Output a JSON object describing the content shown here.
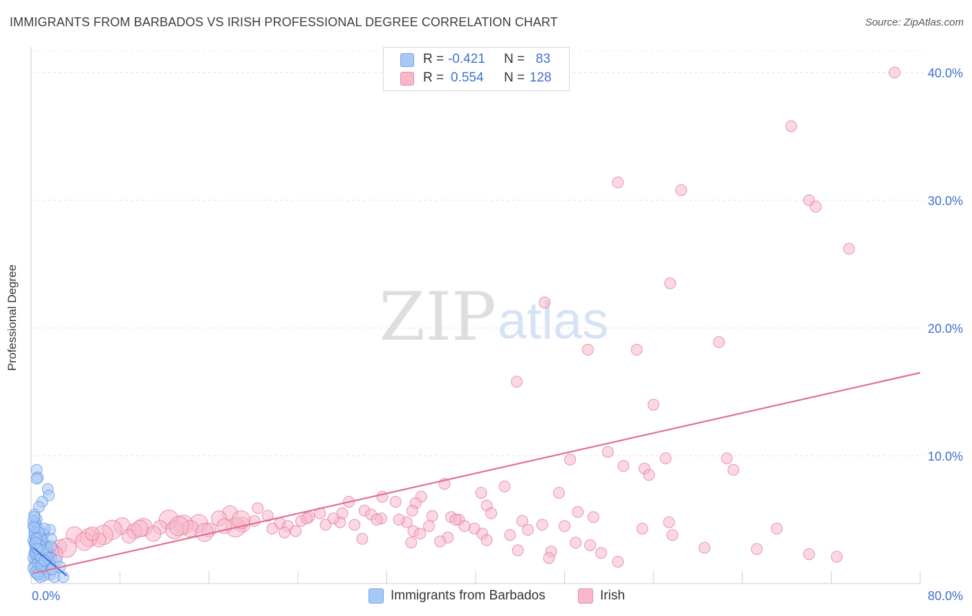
{
  "title": "IMMIGRANTS FROM BARBADOS VS IRISH PROFESSIONAL DEGREE CORRELATION CHART",
  "source": "Source: ZipAtlas.com",
  "watermark": {
    "zip": "ZIP",
    "atlas": "atlas"
  },
  "legend_stats": [
    {
      "r_label": "R =",
      "r_value": "-0.421",
      "n_label": "N =",
      "n_value": "83",
      "color": "#a8c8f5"
    },
    {
      "r_label": "R =",
      "r_value": "0.554",
      "n_label": "N =",
      "n_value": "128",
      "color": "#f7b8cc"
    }
  ],
  "bottom_legend": [
    {
      "label": "Immigrants from Barbados",
      "color": "#a8c8f5"
    },
    {
      "label": "Irish",
      "color": "#f7b8cc"
    }
  ],
  "chart_data": {
    "type": "scatter",
    "title": "IMMIGRANTS FROM BARBADOS VS IRISH PROFESSIONAL DEGREE CORRELATION CHART",
    "xlabel": "",
    "ylabel": "Professional Degree",
    "xlim": [
      0,
      80
    ],
    "ylim": [
      0,
      42
    ],
    "x_tick_labels": {
      "min": "0.0%",
      "max": "80.0%"
    },
    "y_ticks": [
      10,
      20,
      30,
      40
    ],
    "y_tick_labels": [
      "10.0%",
      "20.0%",
      "30.0%",
      "40.0%"
    ],
    "grid": true,
    "series": [
      {
        "name": "Immigrants from Barbados",
        "color": "#5b8fe0",
        "fill": "#a8c8f5",
        "r": -0.421,
        "n": 83,
        "trend": {
          "x": [
            0.2,
            3.2
          ],
          "y": [
            2.8,
            0.6
          ]
        },
        "points": [
          [
            0.5,
            8.9
          ],
          [
            0.6,
            8.3
          ],
          [
            0.5,
            8.2
          ],
          [
            1.5,
            7.4
          ],
          [
            1.6,
            6.9
          ],
          [
            1.0,
            6.4
          ],
          [
            0.7,
            6.0
          ],
          [
            0.3,
            5.4
          ],
          [
            0.5,
            5.0
          ],
          [
            0.4,
            4.7
          ],
          [
            0.2,
            4.5
          ],
          [
            0.6,
            4.3
          ],
          [
            1.7,
            4.2
          ],
          [
            0.3,
            4.0
          ],
          [
            1.1,
            3.9
          ],
          [
            0.8,
            3.7
          ],
          [
            0.4,
            3.6
          ],
          [
            1.8,
            3.5
          ],
          [
            0.2,
            3.4
          ],
          [
            0.5,
            3.3
          ],
          [
            0.9,
            3.2
          ],
          [
            0.3,
            3.1
          ],
          [
            1.3,
            3.0
          ],
          [
            0.7,
            2.9
          ],
          [
            0.4,
            2.8
          ],
          [
            1.0,
            2.7
          ],
          [
            0.6,
            2.6
          ],
          [
            1.5,
            2.5
          ],
          [
            0.3,
            2.4
          ],
          [
            0.9,
            2.3
          ],
          [
            1.2,
            2.2
          ],
          [
            0.5,
            2.1
          ],
          [
            1.8,
            2.0
          ],
          [
            0.8,
            1.9
          ],
          [
            0.4,
            1.8
          ],
          [
            1.1,
            1.7
          ],
          [
            1.6,
            1.6
          ],
          [
            0.7,
            1.5
          ],
          [
            0.3,
            1.4
          ],
          [
            1.4,
            1.3
          ],
          [
            1.0,
            1.2
          ],
          [
            0.6,
            1.1
          ],
          [
            0.9,
            1.0
          ],
          [
            1.3,
            0.9
          ],
          [
            0.5,
            0.8
          ],
          [
            1.7,
            0.7
          ],
          [
            1.1,
            0.6
          ],
          [
            0.8,
            0.5
          ],
          [
            2.1,
            0.5
          ],
          [
            2.9,
            0.5
          ],
          [
            0.2,
            2.0
          ],
          [
            0.4,
            2.5
          ],
          [
            0.6,
            3.0
          ],
          [
            0.9,
            3.6
          ],
          [
            0.2,
            4.9
          ],
          [
            0.3,
            5.2
          ],
          [
            0.4,
            2.3
          ],
          [
            0.6,
            1.6
          ],
          [
            1.2,
            4.3
          ],
          [
            0.7,
            2.2
          ],
          [
            1.4,
            2.8
          ],
          [
            0.9,
            2.0
          ],
          [
            0.3,
            3.8
          ],
          [
            0.5,
            2.9
          ],
          [
            1.0,
            3.4
          ],
          [
            2.3,
            1.8
          ],
          [
            1.9,
            1.1
          ],
          [
            0.8,
            3.0
          ],
          [
            1.3,
            2.4
          ],
          [
            0.2,
            1.2
          ],
          [
            0.4,
            0.9
          ],
          [
            0.7,
            4.0
          ],
          [
            1.5,
            2.0
          ],
          [
            0.5,
            3.5
          ],
          [
            1.1,
            2.6
          ],
          [
            0.6,
            0.7
          ],
          [
            2.6,
            1.3
          ],
          [
            0.3,
            4.4
          ],
          [
            1.8,
            2.9
          ],
          [
            0.9,
            1.4
          ],
          [
            0.4,
            3.2
          ],
          [
            1.2,
            1.8
          ],
          [
            0.6,
            2.7
          ]
        ]
      },
      {
        "name": "Irish",
        "color": "#e0708f",
        "fill": "#f7b8cc",
        "r": 0.554,
        "n": 128,
        "trend": {
          "x": [
            0.2,
            80
          ],
          "y": [
            0.8,
            16.5
          ]
        },
        "points": [
          [
            77.7,
            40.0
          ],
          [
            68.4,
            35.8
          ],
          [
            52.8,
            31.4
          ],
          [
            58.5,
            30.8
          ],
          [
            70.0,
            30.0
          ],
          [
            70.6,
            29.5
          ],
          [
            73.6,
            26.2
          ],
          [
            57.5,
            23.5
          ],
          [
            46.2,
            22.0
          ],
          [
            50.1,
            18.3
          ],
          [
            54.5,
            18.3
          ],
          [
            61.9,
            18.9
          ],
          [
            43.7,
            15.8
          ],
          [
            56.0,
            14.0
          ],
          [
            51.9,
            10.3
          ],
          [
            48.5,
            9.7
          ],
          [
            57.1,
            9.8
          ],
          [
            62.6,
            9.8
          ],
          [
            53.3,
            9.2
          ],
          [
            55.2,
            9.0
          ],
          [
            63.2,
            8.9
          ],
          [
            55.6,
            8.5
          ],
          [
            37.2,
            7.8
          ],
          [
            42.6,
            7.6
          ],
          [
            40.5,
            7.1
          ],
          [
            47.5,
            7.1
          ],
          [
            35.1,
            6.8
          ],
          [
            31.6,
            6.8
          ],
          [
            28.6,
            6.4
          ],
          [
            32.8,
            6.4
          ],
          [
            34.6,
            6.3
          ],
          [
            41.0,
            6.1
          ],
          [
            20.4,
            5.9
          ],
          [
            17.9,
            5.5
          ],
          [
            30.0,
            5.7
          ],
          [
            34.3,
            5.7
          ],
          [
            26.0,
            5.5
          ],
          [
            49.2,
            5.6
          ],
          [
            41.4,
            5.5
          ],
          [
            21.3,
            5.3
          ],
          [
            30.6,
            5.4
          ],
          [
            25.0,
            5.2
          ],
          [
            36.1,
            5.3
          ],
          [
            16.9,
            5.1
          ],
          [
            31.5,
            5.1
          ],
          [
            37.8,
            5.2
          ],
          [
            38.5,
            5.0
          ],
          [
            12.4,
            5.0
          ],
          [
            20.1,
            4.9
          ],
          [
            24.3,
            4.9
          ],
          [
            27.8,
            4.8
          ],
          [
            33.8,
            4.8
          ],
          [
            44.2,
            4.9
          ],
          [
            50.6,
            5.2
          ],
          [
            15.1,
            4.7
          ],
          [
            22.4,
            4.7
          ],
          [
            8.2,
            4.5
          ],
          [
            13.7,
            4.6
          ],
          [
            19.0,
            4.6
          ],
          [
            23.1,
            4.5
          ],
          [
            26.5,
            4.6
          ],
          [
            29.1,
            4.6
          ],
          [
            35.8,
            4.5
          ],
          [
            46.0,
            4.6
          ],
          [
            10.1,
            4.4
          ],
          [
            11.6,
            4.4
          ],
          [
            14.3,
            4.3
          ],
          [
            18.4,
            4.4
          ],
          [
            21.7,
            4.3
          ],
          [
            39.9,
            4.3
          ],
          [
            48.0,
            4.5
          ],
          [
            57.4,
            4.8
          ],
          [
            7.3,
            4.2
          ],
          [
            9.3,
            4.1
          ],
          [
            12.9,
            4.2
          ],
          [
            16.0,
            4.2
          ],
          [
            23.8,
            4.1
          ],
          [
            34.4,
            4.1
          ],
          [
            40.6,
            3.9
          ],
          [
            55.0,
            4.3
          ],
          [
            67.1,
            4.3
          ],
          [
            3.9,
            3.8
          ],
          [
            6.5,
            3.8
          ],
          [
            11.0,
            3.9
          ],
          [
            15.6,
            4.0
          ],
          [
            22.8,
            4.0
          ],
          [
            35.0,
            3.9
          ],
          [
            43.1,
            3.8
          ],
          [
            57.7,
            3.8
          ],
          [
            5.2,
            3.6
          ],
          [
            8.8,
            3.7
          ],
          [
            37.5,
            3.6
          ],
          [
            29.8,
            3.5
          ],
          [
            41.0,
            3.4
          ],
          [
            4.8,
            3.3
          ],
          [
            6.1,
            3.4
          ],
          [
            34.2,
            3.2
          ],
          [
            36.8,
            3.3
          ],
          [
            49.0,
            3.2
          ],
          [
            50.3,
            3.0
          ],
          [
            2.6,
            2.9
          ],
          [
            43.8,
            2.6
          ],
          [
            3.2,
            2.8
          ],
          [
            60.6,
            2.8
          ],
          [
            65.3,
            2.7
          ],
          [
            46.8,
            2.5
          ],
          [
            51.3,
            2.4
          ],
          [
            70.0,
            2.3
          ],
          [
            72.5,
            2.1
          ],
          [
            46.6,
            2.0
          ],
          [
            52.8,
            1.7
          ],
          [
            2.1,
            2.3
          ],
          [
            1.4,
            2.0
          ],
          [
            1.8,
            2.6
          ],
          [
            0.9,
            1.8
          ],
          [
            5.5,
            3.9
          ],
          [
            9.8,
            4.3
          ],
          [
            13.3,
            4.5
          ],
          [
            17.4,
            4.5
          ],
          [
            18.9,
            5.0
          ],
          [
            24.8,
            5.1
          ],
          [
            27.2,
            5.1
          ],
          [
            28.0,
            5.5
          ],
          [
            31.1,
            5.0
          ],
          [
            33.1,
            5.0
          ],
          [
            38.2,
            5.0
          ],
          [
            39.0,
            4.5
          ],
          [
            44.7,
            4.2
          ]
        ]
      }
    ]
  }
}
